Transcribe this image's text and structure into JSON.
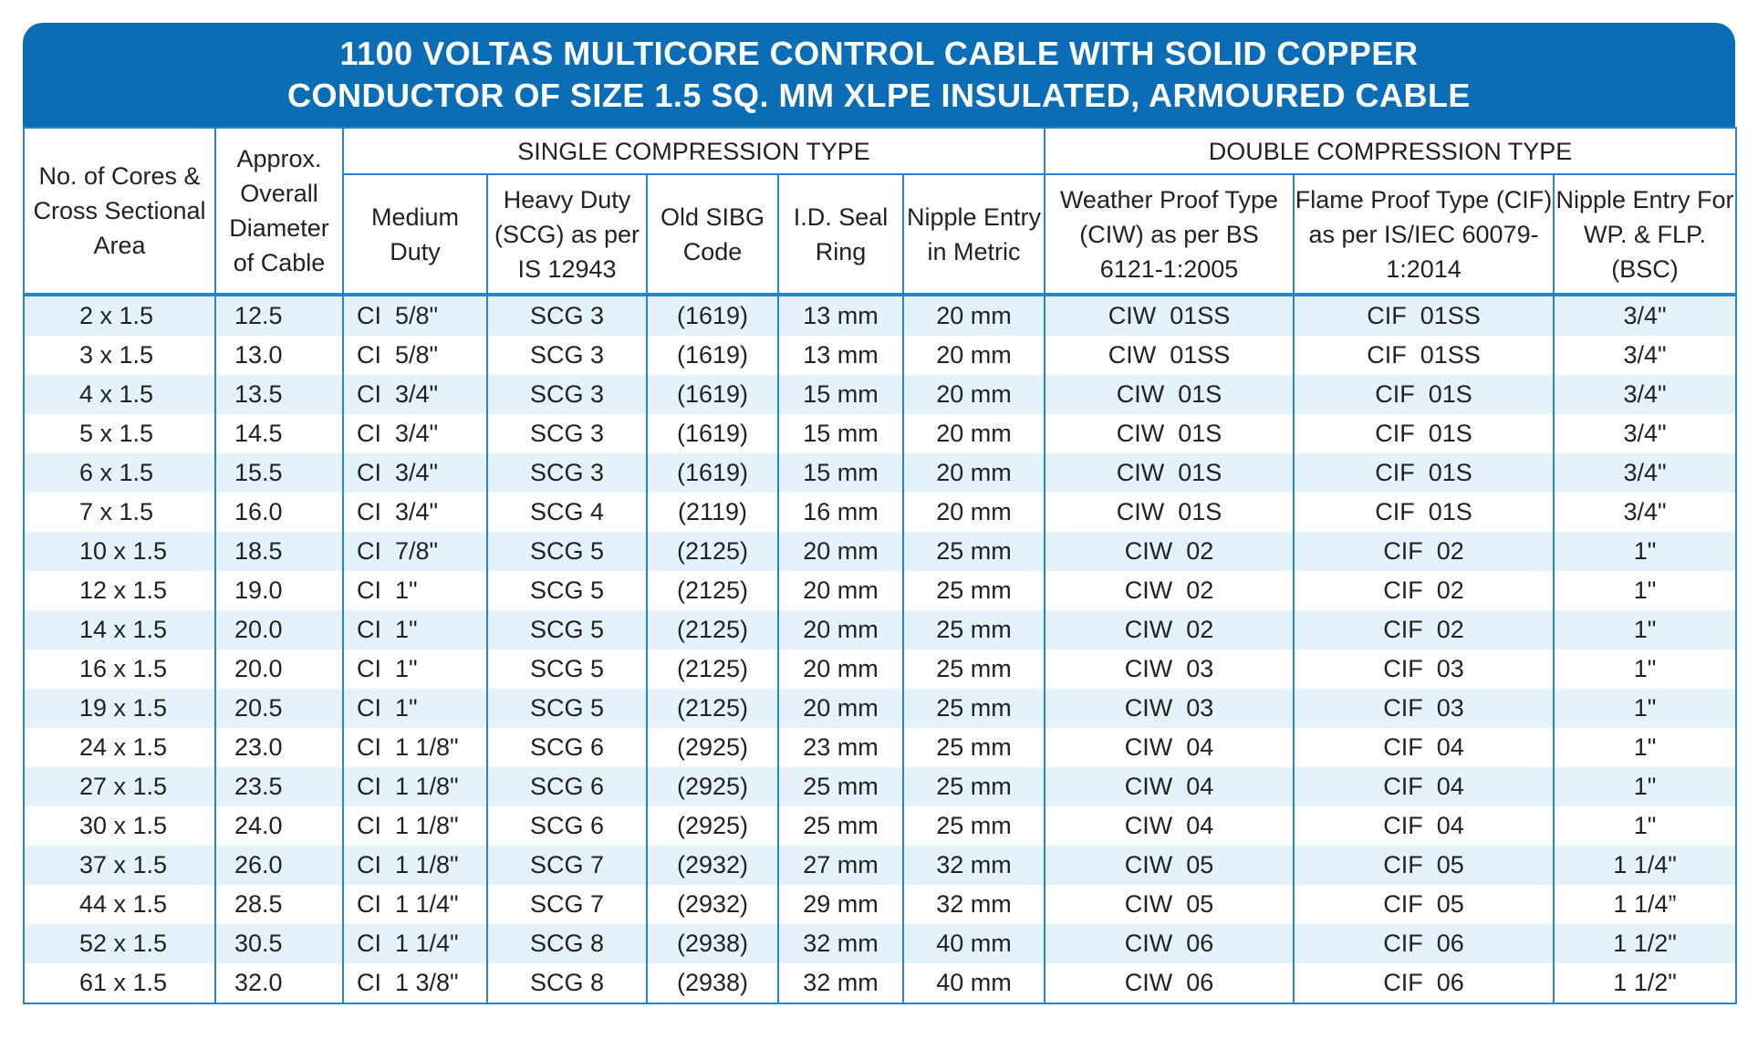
{
  "title": {
    "line1": "1100 VOLTAS MULTICORE CONTROL CABLE WITH SOLID COPPER",
    "line2": "CONDUCTOR OF SIZE 1.5 SQ. MM XLPE INSULATED, ARMOURED CABLE"
  },
  "colors": {
    "header_blue": "#0b6db5",
    "border_blue": "#2a84c6",
    "stripe": "#e4f2fb"
  },
  "headers": {
    "cores": "No. of Cores & Cross Sectional Area",
    "diameter": "Approx. Overall Diameter of Cable",
    "single_group": "SINGLE COMPRESSION TYPE",
    "double_group": "DOUBLE COMPRESSION TYPE",
    "medium": "Medium Duty",
    "heavy": "Heavy Duty (SCG) as per IS 12943",
    "sibg": "Old SIBG Code",
    "seal": "I.D. Seal Ring",
    "nipple_metric": "Nipple Entry in Metric",
    "ciw": "Weather Proof Type (CIW) as per BS 6121-1:2005",
    "cif": "Flame Proof Type (CIF) as per IS/IEC 60079-1:2014",
    "nipple_bsc": "Nipple Entry For WP. & FLP. (BSC)"
  },
  "rows": [
    [
      "2 x 1.5",
      "12.5",
      "CI  5/8\"",
      "SCG 3",
      "(1619)",
      "13 mm",
      "20 mm",
      "CIW  01SS",
      "CIF  01SS",
      "3/4\""
    ],
    [
      "3 x 1.5",
      "13.0",
      "CI  5/8\"",
      "SCG 3",
      "(1619)",
      "13 mm",
      "20 mm",
      "CIW  01SS",
      "CIF  01SS",
      "3/4\""
    ],
    [
      "4 x 1.5",
      "13.5",
      "CI  3/4\"",
      "SCG 3",
      "(1619)",
      "15 mm",
      "20 mm",
      "CIW  01S",
      "CIF  01S",
      "3/4\""
    ],
    [
      "5 x 1.5",
      "14.5",
      "CI  3/4\"",
      "SCG 3",
      "(1619)",
      "15 mm",
      "20 mm",
      "CIW  01S",
      "CIF  01S",
      "3/4\""
    ],
    [
      "6 x 1.5",
      "15.5",
      "CI  3/4\"",
      "SCG 3",
      "(1619)",
      "15 mm",
      "20 mm",
      "CIW  01S",
      "CIF  01S",
      "3/4\""
    ],
    [
      "7 x 1.5",
      "16.0",
      "CI  3/4\"",
      "SCG 4",
      "(2119)",
      "16 mm",
      "20 mm",
      "CIW  01S",
      "CIF  01S",
      "3/4\""
    ],
    [
      "10 x 1.5",
      "18.5",
      "CI  7/8\"",
      "SCG 5",
      "(2125)",
      "20 mm",
      "25 mm",
      "CIW  02",
      "CIF  02",
      "1\""
    ],
    [
      "12 x 1.5",
      "19.0",
      "CI  1\"",
      "SCG 5",
      "(2125)",
      "20 mm",
      "25 mm",
      "CIW  02",
      "CIF  02",
      "1\""
    ],
    [
      "14 x 1.5",
      "20.0",
      "CI  1\"",
      "SCG 5",
      "(2125)",
      "20 mm",
      "25 mm",
      "CIW  02",
      "CIF  02",
      "1\""
    ],
    [
      "16 x 1.5",
      "20.0",
      "CI  1\"",
      "SCG 5",
      "(2125)",
      "20 mm",
      "25 mm",
      "CIW  03",
      "CIF  03",
      "1\""
    ],
    [
      "19 x 1.5",
      "20.5",
      "CI  1\"",
      "SCG 5",
      "(2125)",
      "20 mm",
      "25 mm",
      "CIW  03",
      "CIF  03",
      "1\""
    ],
    [
      "24 x 1.5",
      "23.0",
      "CI  1 1/8\"",
      "SCG 6",
      "(2925)",
      "23 mm",
      "25 mm",
      "CIW  04",
      "CIF  04",
      "1\""
    ],
    [
      "27 x 1.5",
      "23.5",
      "CI  1 1/8\"",
      "SCG 6",
      "(2925)",
      "25 mm",
      "25 mm",
      "CIW  04",
      "CIF  04",
      "1\""
    ],
    [
      "30 x 1.5",
      "24.0",
      "CI  1 1/8\"",
      "SCG 6",
      "(2925)",
      "25 mm",
      "25 mm",
      "CIW  04",
      "CIF  04",
      "1\""
    ],
    [
      "37 x 1.5",
      "26.0",
      "CI  1 1/8\"",
      "SCG 7",
      "(2932)",
      "27 mm",
      "32 mm",
      "CIW  05",
      "CIF  05",
      "1 1/4\""
    ],
    [
      "44 x 1.5",
      "28.5",
      "CI  1 1/4\"",
      "SCG 7",
      "(2932)",
      "29 mm",
      "32 mm",
      "CIW  05",
      "CIF  05",
      "1 1/4”"
    ],
    [
      "52 x 1.5",
      "30.5",
      "CI  1 1/4\"",
      "SCG 8",
      "(2938)",
      "32 mm",
      "40 mm",
      "CIW  06",
      "CIF  06",
      "1 1/2\""
    ],
    [
      "61 x 1.5",
      "32.0",
      "CI  1 3/8\"",
      "SCG 8",
      "(2938)",
      "32 mm",
      "40 mm",
      "CIW  06",
      "CIF  06",
      "1 1/2\""
    ]
  ]
}
